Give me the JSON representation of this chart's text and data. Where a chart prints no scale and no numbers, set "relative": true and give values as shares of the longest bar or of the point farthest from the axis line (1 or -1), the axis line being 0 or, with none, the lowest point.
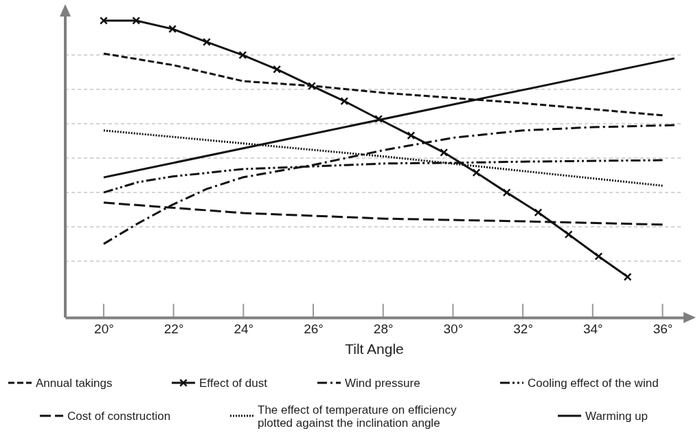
{
  "chart_data": {
    "type": "line",
    "xlabel": "Tilt Angle",
    "relative": true,
    "xlim": [
      18.9,
      36.6
    ],
    "xticks": [
      {
        "value": 20,
        "label": "20°"
      },
      {
        "value": 22,
        "label": "22°"
      },
      {
        "value": 24,
        "label": "24°"
      },
      {
        "value": 26,
        "label": "26°"
      },
      {
        "value": 28,
        "label": "28°"
      },
      {
        "value": 30,
        "label": "30°"
      },
      {
        "value": 32,
        "label": "32°"
      },
      {
        "value": 34,
        "label": "34°"
      },
      {
        "value": 36,
        "label": "36°"
      }
    ],
    "grid": "y",
    "legend": "bottom",
    "series": [
      {
        "name": "Annual takings",
        "color": "#111111",
        "line_style": "dashed",
        "x": [
          20,
          22,
          24,
          26,
          28,
          32,
          36
        ],
        "values": [
          0.889,
          0.85,
          0.796,
          0.78,
          0.757,
          0.722,
          0.681
        ]
      },
      {
        "name": "Effect of dust",
        "color": "#111111",
        "line_style": "solid",
        "marker": "cross",
        "x": [
          20,
          20.93,
          21.97,
          22.95,
          23.98,
          24.96,
          25.96,
          26.89,
          27.87,
          28.8,
          29.74,
          30.67,
          31.54,
          32.44,
          33.31,
          34.17,
          35.0
        ],
        "values": [
          1,
          1,
          0.972,
          0.928,
          0.884,
          0.836,
          0.78,
          0.729,
          0.669,
          0.613,
          0.556,
          0.488,
          0.421,
          0.354,
          0.28,
          0.206,
          0.137
        ]
      },
      {
        "name": "Wind pressure",
        "color": "#111111",
        "line_style": "dashdot",
        "x": [
          20,
          20.98,
          21.97,
          22.95,
          23.98,
          26,
          28.07,
          30.04,
          32,
          33.98,
          36.34
        ],
        "values": [
          0.248,
          0.317,
          0.38,
          0.433,
          0.472,
          0.514,
          0.565,
          0.606,
          0.63,
          0.641,
          0.648
        ]
      },
      {
        "name": "Cooling effect of the wind",
        "color": "#111111",
        "line_style": "dashdotdot",
        "x": [
          20,
          20.98,
          21.97,
          23.98,
          26,
          28.07,
          30.04,
          32,
          36
        ],
        "values": [
          0.421,
          0.456,
          0.475,
          0.5,
          0.509,
          0.519,
          0.521,
          0.525,
          0.53
        ]
      },
      {
        "name": "Cost of construction",
        "color": "#111111",
        "line_style": "longdash",
        "x": [
          20,
          24,
          28.07,
          32,
          36
        ],
        "values": [
          0.387,
          0.352,
          0.333,
          0.324,
          0.313
        ]
      },
      {
        "name": "The effect of  temperature on efficiency\nplotted against the inclination angle",
        "color": "#111111",
        "line_style": "dotted",
        "x": [
          20,
          28.07,
          36
        ],
        "values": [
          0.63,
          0.542,
          0.444
        ]
      },
      {
        "name": "Warming up",
        "color": "#111111",
        "line_style": "solid",
        "x": [
          20,
          36.34
        ],
        "values": [
          0.472,
          0.873
        ]
      }
    ]
  }
}
